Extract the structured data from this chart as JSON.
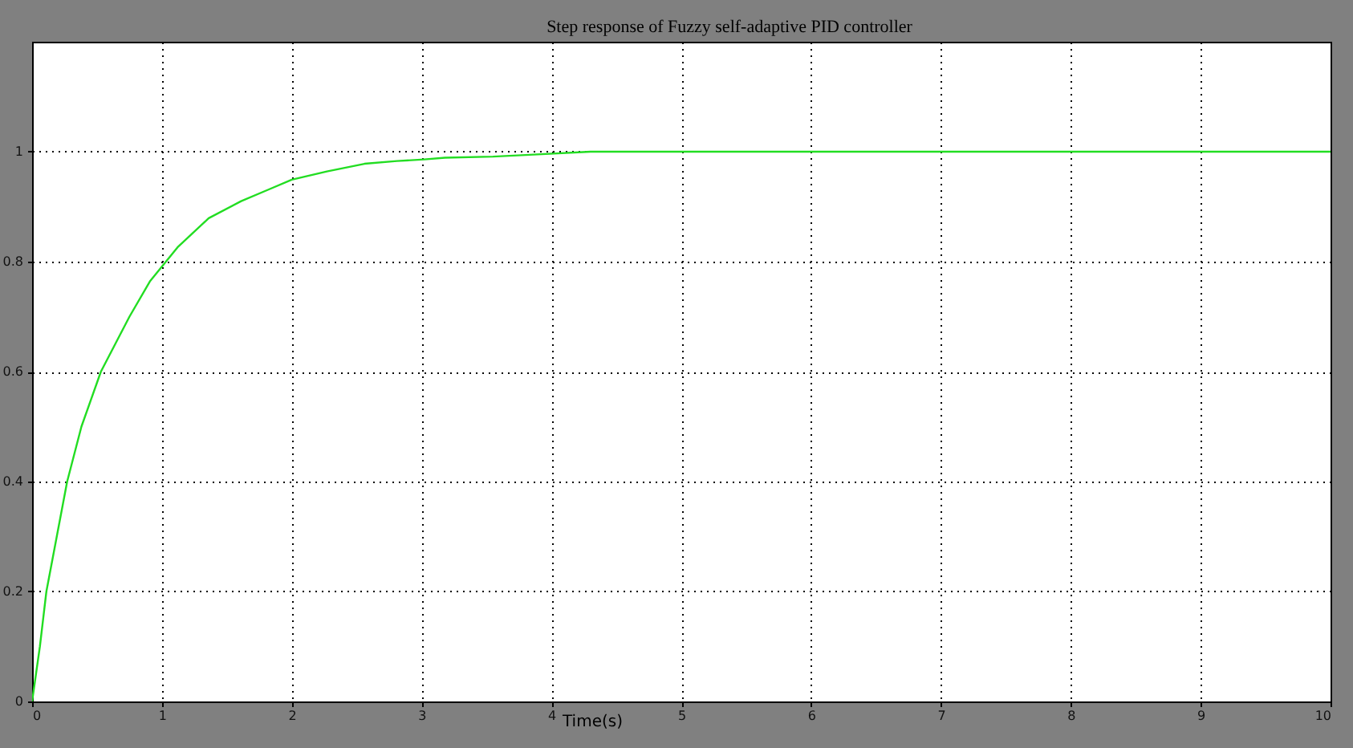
{
  "chart_data": {
    "type": "line",
    "title": "Step response of Fuzzy self-adaptive PID controller",
    "xlabel": "Time(s)",
    "x": [
      0,
      0.06,
      0.11,
      0.19,
      0.27,
      0.38,
      0.53,
      0.64,
      0.75,
      0.91,
      1.12,
      1.36,
      1.61,
      1.82,
      2.0,
      2.27,
      2.56,
      2.81,
      3.02,
      3.18,
      3.55,
      3.8,
      4.3,
      10
    ],
    "series": [
      {
        "color": "#22dd22",
        "values": [
          0,
          0.1,
          0.2,
          0.3,
          0.4,
          0.5,
          0.6,
          0.65,
          0.7,
          0.765,
          0.826,
          0.879,
          0.91,
          0.931,
          0.949,
          0.964,
          0.978,
          0.983,
          0.986,
          0.989,
          0.991,
          0.994,
          1,
          1
        ]
      }
    ],
    "xlim": [
      0,
      10
    ],
    "ylim": [
      0,
      1.2
    ],
    "xticks": [
      0,
      1,
      2,
      3,
      4,
      5,
      6,
      7,
      8,
      9,
      10
    ],
    "yticks": [
      0,
      0.2,
      0.4,
      0.6,
      0.8,
      1
    ],
    "grid": true,
    "line_style": "solid"
  }
}
